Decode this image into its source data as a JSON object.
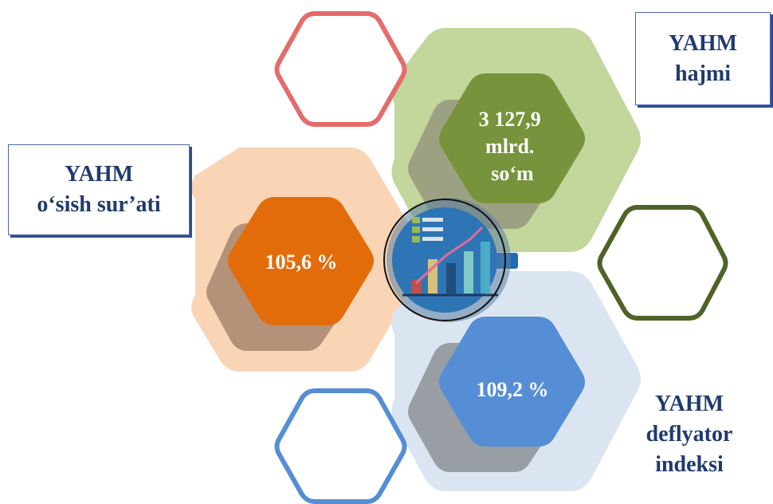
{
  "labels": {
    "volume": [
      "YAHM",
      "hajmi"
    ],
    "growth": [
      "YAHM",
      "o‘sish sur’ati"
    ],
    "deflator": [
      "YAHM",
      "deflyator",
      "indeksi"
    ]
  },
  "values": {
    "volume": [
      "3 127,9",
      "mlrd.",
      "so‘m"
    ],
    "growth": "105,6 %",
    "deflator": "109,2 %"
  },
  "colors": {
    "orange": "#e36c0a",
    "orange_light": "#f9d5b5",
    "green": "#77933c",
    "green_light": "#c3d69b",
    "blue": "#558ed5",
    "blue_light": "#dbe5f1",
    "red_outline": "#e46c6c",
    "navy": "#1f3a6e"
  },
  "center_icon": "bar-chart-growth-icon"
}
